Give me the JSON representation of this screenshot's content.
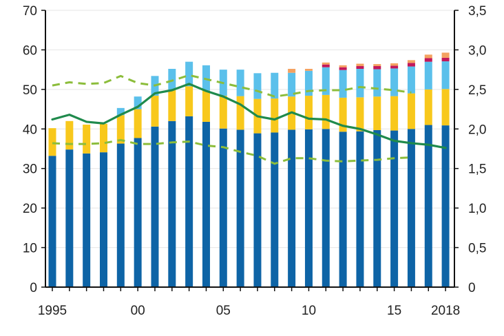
{
  "chart_data": {
    "type": "bar",
    "stacked": true,
    "title": "",
    "xlabel": "",
    "ylabel": "",
    "years": [
      1995,
      1996,
      1997,
      1998,
      1999,
      2000,
      2001,
      2002,
      2003,
      2004,
      2005,
      2006,
      2007,
      2008,
      2009,
      2010,
      2011,
      2012,
      2013,
      2014,
      2015,
      2016,
      2017,
      2018
    ],
    "x_tick_labels": [
      {
        "year": 1995,
        "label": "1995"
      },
      {
        "year": 2000,
        "label": "00"
      },
      {
        "year": 2005,
        "label": "05"
      },
      {
        "year": 2010,
        "label": "10"
      },
      {
        "year": 2015,
        "label": "15"
      },
      {
        "year": 2018,
        "label": "2018"
      }
    ],
    "left_axis": {
      "min": 0,
      "max": 70,
      "ticks": [
        "0",
        "10",
        "20",
        "30",
        "40",
        "50",
        "60",
        "70"
      ]
    },
    "right_axis": {
      "min": 0,
      "max": 3.5,
      "ticks": [
        "0",
        "0,5",
        "1,0",
        "1,5",
        "2,0",
        "2,5",
        "3,0",
        "3,5"
      ]
    },
    "grid": true,
    "legend": "none",
    "bar_series": [
      {
        "color": "#0e64a6",
        "values": [
          33.2,
          34.8,
          33.8,
          34.1,
          36.3,
          37.7,
          40.6,
          42.0,
          43.2,
          41.8,
          40.1,
          39.8,
          38.9,
          39.1,
          39.8,
          39.9,
          40.0,
          39.3,
          39.4,
          39.7,
          39.6,
          40.0,
          41.0,
          40.9
        ]
      },
      {
        "color": "#f8c81c",
        "values": [
          7.0,
          7.2,
          7.3,
          7.2,
          7.2,
          7.3,
          7.8,
          7.8,
          7.6,
          7.9,
          8.3,
          8.5,
          8.7,
          8.6,
          8.4,
          8.5,
          8.6,
          8.6,
          8.6,
          8.5,
          8.7,
          9.0,
          9.0,
          9.2
        ]
      },
      {
        "color": "#5bc0eb",
        "values": [
          0,
          0,
          0,
          0,
          1.8,
          3.2,
          5.0,
          5.4,
          6.2,
          6.4,
          6.6,
          6.7,
          6.5,
          6.5,
          6.0,
          6.3,
          7.0,
          7.0,
          7.2,
          6.9,
          7.0,
          6.8,
          7.0,
          7.0
        ]
      },
      {
        "color": "#c2185b",
        "values": [
          0,
          0,
          0,
          0,
          0,
          0,
          0,
          0,
          0,
          0,
          0,
          0,
          0,
          0,
          0,
          0,
          0.7,
          0.7,
          0.7,
          0.8,
          0.7,
          0.9,
          0.9,
          0.9
        ]
      },
      {
        "color": "#f4a261",
        "values": [
          0,
          0,
          0,
          0,
          0,
          0,
          0,
          0,
          0,
          0,
          0,
          0,
          0,
          0,
          1.0,
          0.5,
          0.5,
          0.5,
          0.6,
          0.5,
          0.6,
          0.7,
          0.9,
          1.3
        ]
      }
    ],
    "line_series": [
      {
        "color": "#1f8a4c",
        "style": "solid",
        "axis": "right",
        "values": [
          2.12,
          2.18,
          2.09,
          2.07,
          2.18,
          2.28,
          2.45,
          2.49,
          2.57,
          2.48,
          2.41,
          2.31,
          2.16,
          2.12,
          2.21,
          2.13,
          2.12,
          2.04,
          2.0,
          1.93,
          1.85,
          1.82,
          1.8,
          1.76
        ]
      },
      {
        "color": "#8cbd3b",
        "style": "dashed",
        "axis": "right",
        "values": [
          2.55,
          2.59,
          2.57,
          2.58,
          2.67,
          2.58,
          2.55,
          2.61,
          2.68,
          2.63,
          2.58,
          2.53,
          2.48,
          2.41,
          2.44,
          2.48,
          2.49,
          2.49,
          2.53,
          2.51,
          2.49,
          2.46,
          null,
          null
        ]
      },
      {
        "color": "#8cbd3b",
        "style": "dashed",
        "axis": "right",
        "values": [
          1.82,
          1.81,
          1.81,
          1.82,
          1.86,
          1.81,
          1.81,
          1.83,
          1.84,
          1.79,
          1.77,
          1.71,
          1.66,
          1.56,
          1.63,
          1.63,
          1.6,
          1.59,
          1.6,
          1.61,
          1.63,
          1.64,
          null,
          null
        ]
      }
    ]
  }
}
